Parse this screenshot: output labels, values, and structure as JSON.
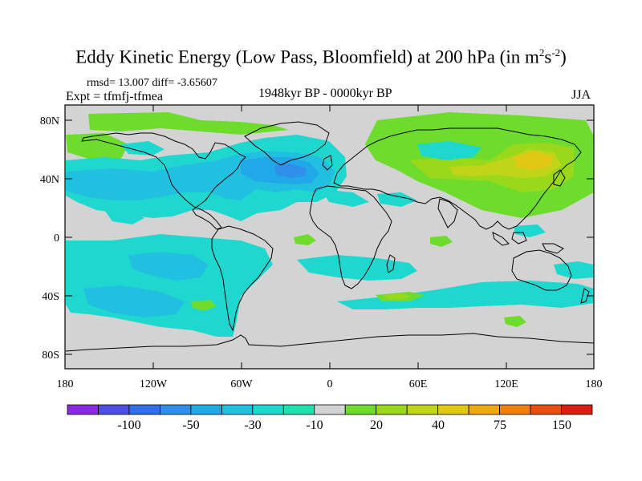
{
  "title": {
    "main": "Eddy Kinetic Energy (Low Pass, Bloomfield) at 200 hPa (in m",
    "sup1": "2",
    "mid": "s",
    "sup2": "-2",
    "end": ")"
  },
  "stats": "rmsd= 13.007 diff= -3.65607",
  "experiment": "Expt = tfmfj-tfmea",
  "period": "1948kyr BP - 0000kyr BP",
  "season": "JJA",
  "map": {
    "projection": "cylindrical equidistant",
    "lon_range": [
      -180,
      180
    ],
    "lat_range": [
      -90,
      90
    ],
    "lat_ticks": [
      "80N",
      "40N",
      "0",
      "40S",
      "80S"
    ],
    "lon_ticks": [
      "180",
      "120W",
      "60W",
      "0",
      "60E",
      "120E",
      "180"
    ],
    "background_color": "#d3d3d3"
  },
  "colorbar": {
    "colors": [
      "#8a2be2",
      "#5050e0",
      "#3070e8",
      "#2e90e8",
      "#20a8e8",
      "#22c0e0",
      "#1ed8d0",
      "#20e0b0",
      "#d3d3d3",
      "#6ddc2c",
      "#9ad81c",
      "#c0d418",
      "#e0c814",
      "#f0a810",
      "#f07e10",
      "#e85010",
      "#d82010"
    ],
    "labels": [
      "-100",
      "-50",
      "-30",
      "-10",
      "20",
      "40",
      "75",
      "150"
    ]
  }
}
